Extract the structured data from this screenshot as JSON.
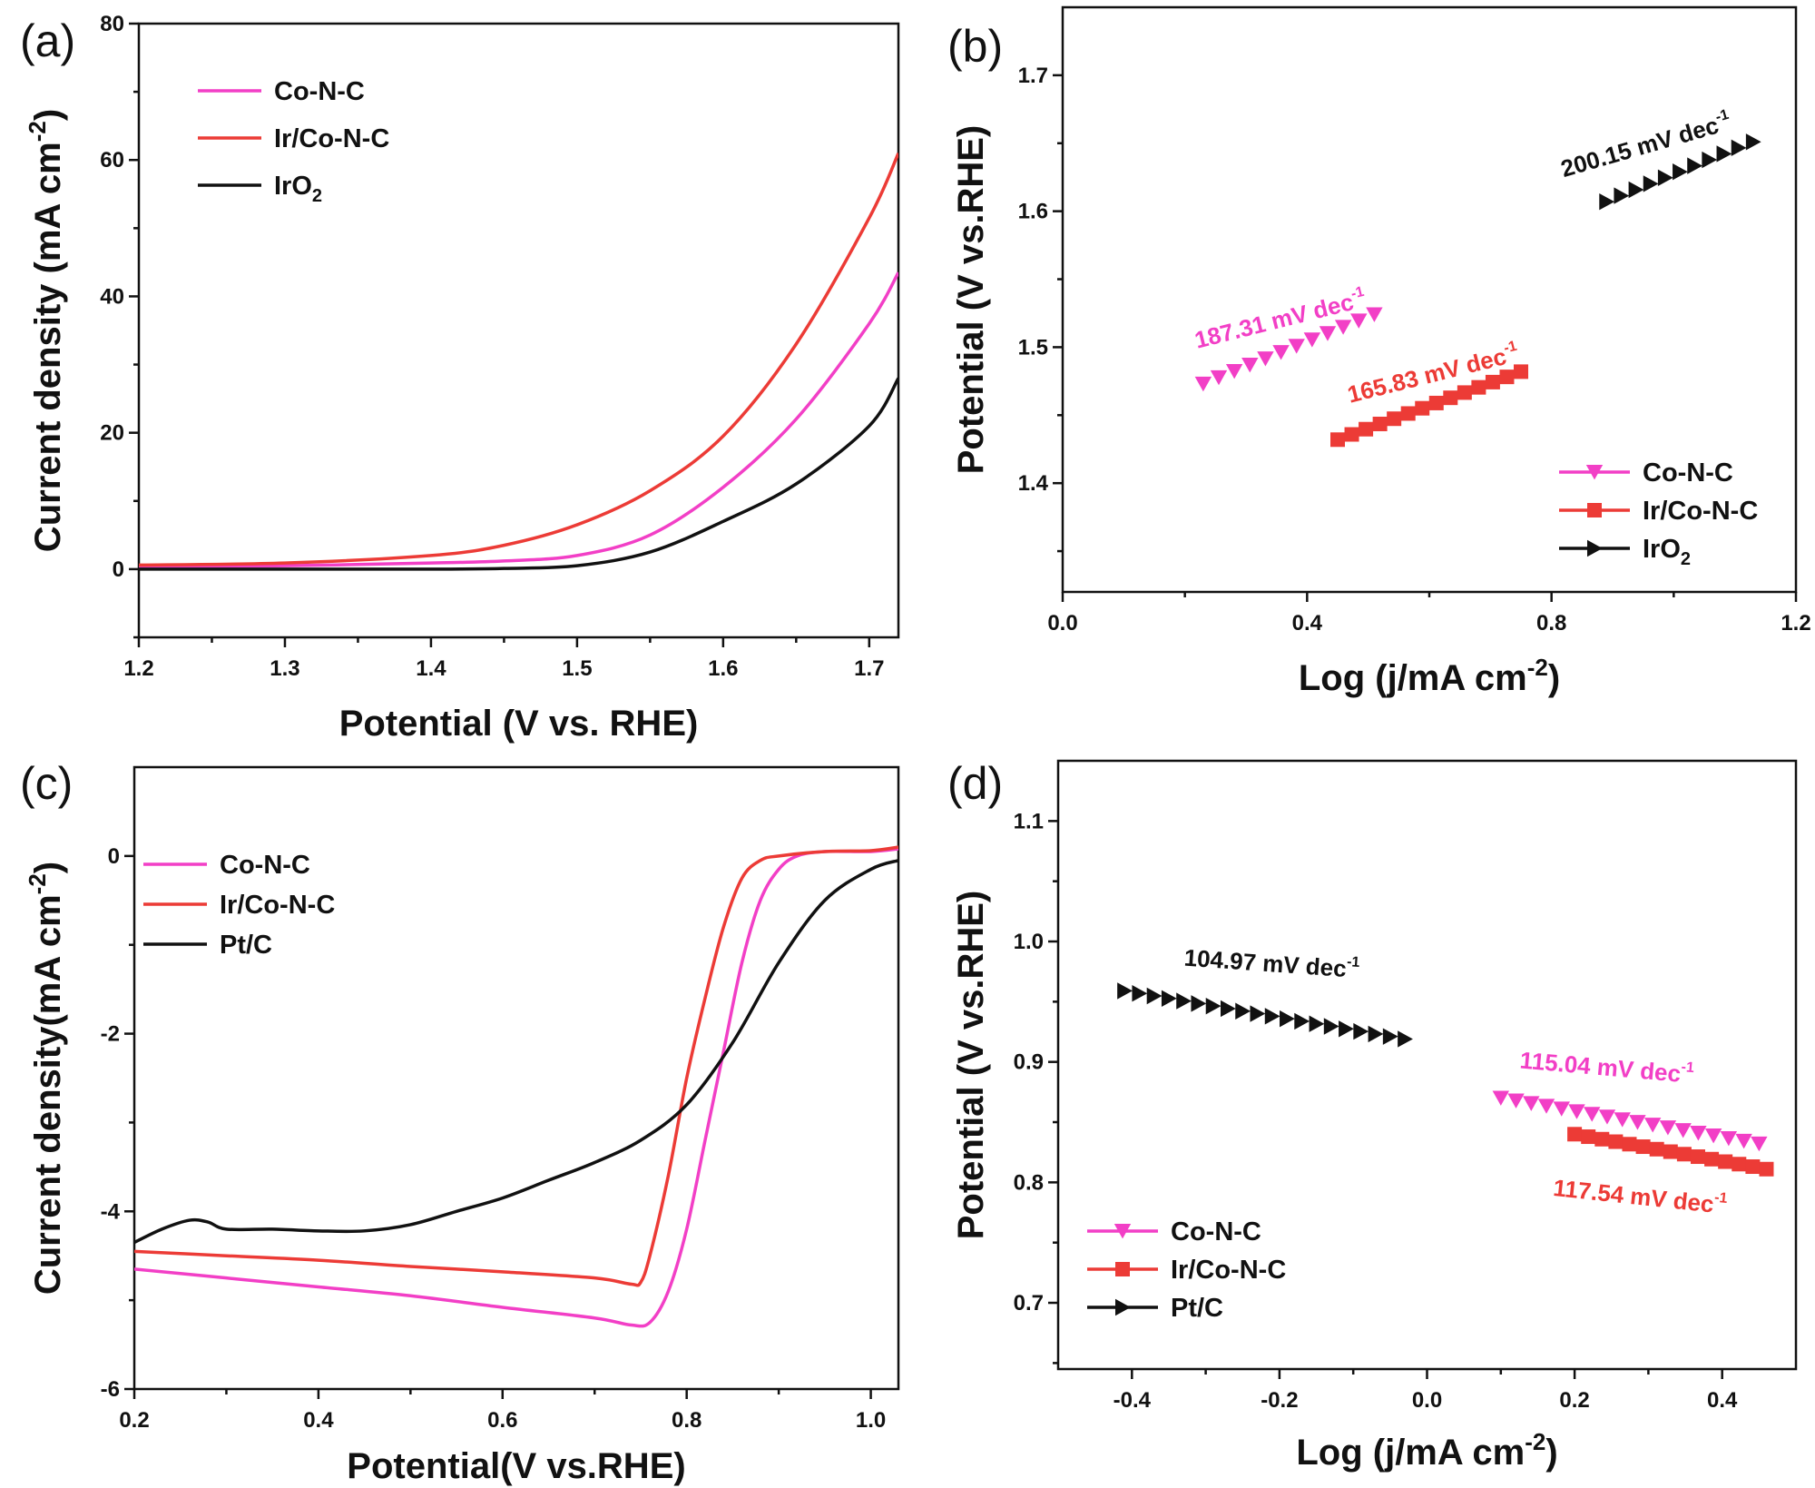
{
  "figure": {
    "colors": {
      "conc": "#f23fc6",
      "ir": "#ec3b36",
      "black": "#111111"
    }
  },
  "chart_data": [
    {
      "panel": "(a)",
      "type": "line",
      "xlabel": "Potential (V vs. RHE)",
      "ylabel": "Current density (mA cm",
      "ylabel_sup": "-2",
      "ylabel_tail": ")",
      "xlim": [
        1.2,
        1.72
      ],
      "ylim": [
        -10,
        80
      ],
      "xticks": [
        "1.2",
        "1.3",
        "1.4",
        "1.5",
        "1.6",
        "1.7"
      ],
      "xtick_values": [
        1.2,
        1.3,
        1.4,
        1.5,
        1.6,
        1.7
      ],
      "yticks": [
        "0",
        "20",
        "40",
        "60",
        "80"
      ],
      "ytick_values": [
        0,
        20,
        40,
        60,
        80
      ],
      "legend": "top-left",
      "series": [
        {
          "name": "Co-N-C",
          "color": "#f23fc6",
          "x": [
            1.2,
            1.3,
            1.4,
            1.45,
            1.5,
            1.55,
            1.6,
            1.65,
            1.7,
            1.72
          ],
          "y": [
            0.3,
            0.5,
            0.9,
            1.2,
            2.0,
            5.0,
            12.0,
            22.0,
            36.0,
            43.5
          ]
        },
        {
          "name": "Ir/Co-N-C",
          "color": "#ec3b36",
          "x": [
            1.2,
            1.3,
            1.4,
            1.45,
            1.5,
            1.55,
            1.6,
            1.65,
            1.7,
            1.72
          ],
          "y": [
            0.6,
            0.9,
            2.0,
            3.5,
            6.5,
            11.5,
            19.5,
            33.0,
            51.5,
            61.0
          ]
        },
        {
          "name": "IrO",
          "name_sub": "2",
          "color": "#111111",
          "x": [
            1.2,
            1.3,
            1.4,
            1.45,
            1.5,
            1.55,
            1.6,
            1.65,
            1.7,
            1.72
          ],
          "y": [
            0.0,
            0.0,
            0.0,
            0.1,
            0.5,
            2.5,
            7.0,
            12.5,
            21.0,
            28.0
          ]
        }
      ]
    },
    {
      "panel": "(b)",
      "type": "scatter",
      "xlabel": "Log (j/mA cm",
      "xlabel_sup": "-2",
      "xlabel_tail": ")",
      "ylabel": "Potential (V vs.RHE)",
      "xlim": [
        0.0,
        1.2
      ],
      "ylim": [
        1.32,
        1.75
      ],
      "xticks": [
        "0.0",
        "0.4",
        "0.8",
        "1.2"
      ],
      "xtick_values": [
        0.0,
        0.4,
        0.8,
        1.2
      ],
      "yticks": [
        "1.4",
        "1.5",
        "1.6",
        "1.7"
      ],
      "ytick_values": [
        1.4,
        1.5,
        1.6,
        1.7
      ],
      "legend": "bottom-right",
      "series": [
        {
          "name": "Co-N-C",
          "marker": "triangle-down",
          "color": "#f23fc6",
          "x_range": [
            0.23,
            0.51
          ],
          "y_range": [
            1.473,
            1.524
          ],
          "n": 12
        },
        {
          "name": "Ir/Co-N-C",
          "marker": "square",
          "color": "#ec3b36",
          "x_range": [
            0.45,
            0.75
          ],
          "y_range": [
            1.432,
            1.482
          ],
          "n": 14
        },
        {
          "name": "IrO",
          "name_sub": "2",
          "marker": "triangle-right",
          "color": "#111111",
          "x_range": [
            0.89,
            1.13
          ],
          "y_range": [
            1.607,
            1.651
          ],
          "n": 11
        }
      ],
      "annotations": [
        {
          "text": "187.31 mV dec",
          "sup": "-1",
          "color": "#f23fc6",
          "x": 0.22,
          "y": 1.499,
          "angle": -14
        },
        {
          "text": "165.83 mV dec",
          "sup": "-1",
          "color": "#ec3b36",
          "x": 0.47,
          "y": 1.459,
          "angle": -14
        },
        {
          "text": "200.15 mV dec",
          "sup": "-1",
          "color": "#111111",
          "x": 0.82,
          "y": 1.625,
          "angle": -16
        }
      ]
    },
    {
      "panel": "(c)",
      "type": "line",
      "xlabel": "Potential(V vs.RHE)",
      "ylabel": "Current density(mA cm",
      "ylabel_sup": "-2",
      "ylabel_tail": ")",
      "xlim": [
        0.2,
        1.03
      ],
      "ylim": [
        -6,
        1
      ],
      "xticks": [
        "0.2",
        "0.4",
        "0.6",
        "0.8",
        "1.0"
      ],
      "xtick_values": [
        0.2,
        0.4,
        0.6,
        0.8,
        1.0
      ],
      "yticks": [
        "-6",
        "-4",
        "-2",
        "0"
      ],
      "ytick_values": [
        -6,
        -4,
        -2,
        0
      ],
      "legend": "top-left",
      "series": [
        {
          "name": "Co-N-C",
          "color": "#f23fc6",
          "x": [
            0.2,
            0.3,
            0.4,
            0.5,
            0.6,
            0.7,
            0.74,
            0.76,
            0.78,
            0.8,
            0.82,
            0.84,
            0.86,
            0.88,
            0.9,
            0.92,
            0.95,
            1.0,
            1.03
          ],
          "y": [
            -4.65,
            -4.75,
            -4.85,
            -4.95,
            -5.08,
            -5.2,
            -5.28,
            -5.25,
            -4.9,
            -4.2,
            -3.2,
            -2.2,
            -1.2,
            -0.5,
            -0.15,
            0.0,
            0.05,
            0.05,
            0.08
          ]
        },
        {
          "name": "Ir/Co-N-C",
          "color": "#ec3b36",
          "x": [
            0.2,
            0.3,
            0.4,
            0.5,
            0.6,
            0.7,
            0.74,
            0.75,
            0.76,
            0.78,
            0.8,
            0.82,
            0.84,
            0.86,
            0.88,
            0.9,
            0.95,
            1.0,
            1.03
          ],
          "y": [
            -4.45,
            -4.5,
            -4.55,
            -4.62,
            -4.68,
            -4.75,
            -4.82,
            -4.8,
            -4.5,
            -3.6,
            -2.5,
            -1.6,
            -0.8,
            -0.25,
            -0.05,
            0.0,
            0.05,
            0.06,
            0.1
          ]
        },
        {
          "name": "Pt/C",
          "color": "#111111",
          "x": [
            0.2,
            0.23,
            0.26,
            0.28,
            0.3,
            0.35,
            0.4,
            0.45,
            0.5,
            0.55,
            0.6,
            0.65,
            0.7,
            0.75,
            0.8,
            0.85,
            0.9,
            0.95,
            1.0,
            1.03
          ],
          "y": [
            -4.35,
            -4.2,
            -4.1,
            -4.12,
            -4.2,
            -4.2,
            -4.22,
            -4.22,
            -4.15,
            -4.0,
            -3.85,
            -3.65,
            -3.45,
            -3.2,
            -2.8,
            -2.1,
            -1.2,
            -0.5,
            -0.15,
            -0.05
          ]
        }
      ]
    },
    {
      "panel": "(d)",
      "type": "scatter",
      "xlabel": "Log (j/mA cm",
      "xlabel_sup": "-2",
      "xlabel_tail": ")",
      "ylabel": "Potential (V vs.RHE)",
      "xlim": [
        -0.5,
        0.5
      ],
      "ylim": [
        0.645,
        1.15
      ],
      "xticks": [
        "-0.4",
        "-0.2",
        "0.0",
        "0.2",
        "0.4"
      ],
      "xtick_values": [
        -0.4,
        -0.2,
        0.0,
        0.2,
        0.4
      ],
      "yticks": [
        "0.7",
        "0.8",
        "0.9",
        "1.0",
        "1.1"
      ],
      "ytick_values": [
        0.7,
        0.8,
        0.9,
        1.0,
        1.1
      ],
      "legend": "bottom-left",
      "series": [
        {
          "name": "Co-N-C",
          "marker": "triangle-down",
          "color": "#f23fc6",
          "x_range": [
            0.1,
            0.45
          ],
          "y_range": [
            0.87,
            0.832
          ],
          "n": 18
        },
        {
          "name": "Ir/Co-N-C",
          "marker": "square",
          "color": "#ec3b36",
          "x_range": [
            0.2,
            0.46
          ],
          "y_range": [
            0.84,
            0.811
          ],
          "n": 15
        },
        {
          "name": "Pt/C",
          "marker": "triangle-right",
          "color": "#111111",
          "x_range": [
            -0.41,
            -0.03
          ],
          "y_range": [
            0.959,
            0.919
          ],
          "n": 20
        }
      ],
      "annotations": [
        {
          "text": "104.97 mV dec",
          "sup": "-1",
          "color": "#111111",
          "x": -0.33,
          "y": 0.98,
          "angle": 4
        },
        {
          "text": "115.04 mV dec",
          "sup": "-1",
          "color": "#f23fc6",
          "x": 0.125,
          "y": 0.895,
          "angle": 5
        },
        {
          "text": "117.54 mV dec",
          "sup": "-1",
          "color": "#ec3b36",
          "x": 0.17,
          "y": 0.789,
          "angle": 6
        }
      ]
    }
  ]
}
